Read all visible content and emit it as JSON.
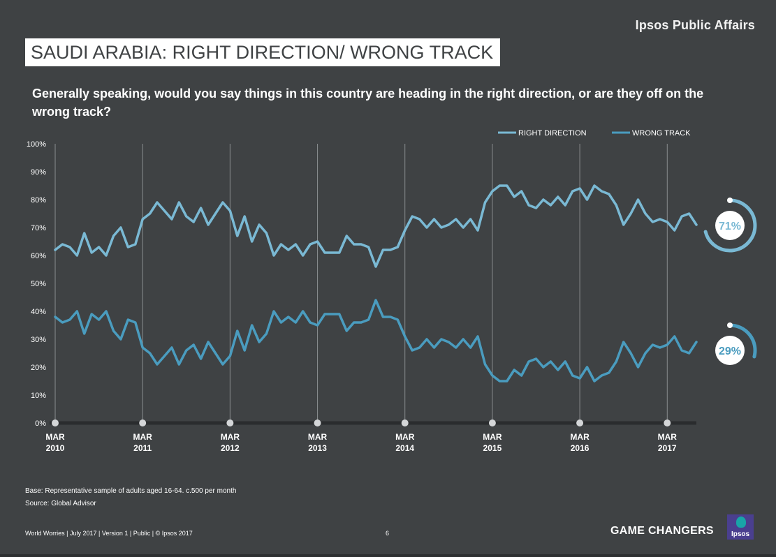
{
  "header": {
    "brand": "Ipsos Public Affairs",
    "title": "SAUDI ARABIA: RIGHT DIRECTION/ WRONG TRACK",
    "question": "Generally speaking, would you say things in this country are heading in the right direction, or are they off on the wrong track?"
  },
  "notes": {
    "base": "Base: Representative sample of adults aged 16-64. c.500 per month",
    "source": "Source: Global Advisor"
  },
  "footer": {
    "text": "World Worries | July 2017 | Version 1 | Public | © Ipsos 2017",
    "page": "6",
    "tagline": "GAME CHANGERS",
    "logo": "Ipsos"
  },
  "colors": {
    "background": "#3f4244",
    "right_direction": "#7ab9d4",
    "wrong_track": "#4a9cbf",
    "grid": "#8a8d8f",
    "baseline": "#2a2c2e"
  },
  "chart_data": {
    "type": "line",
    "title": "SAUDI ARABIA: RIGHT DIRECTION/ WRONG TRACK",
    "xlabel": "",
    "ylabel": "",
    "ylim": [
      0,
      100
    ],
    "y_ticks": [
      "0%",
      "10%",
      "20%",
      "30%",
      "40%",
      "50%",
      "60%",
      "70%",
      "80%",
      "90%",
      "100%"
    ],
    "x_ticks": [
      {
        "month": "MAR",
        "year": "2010"
      },
      {
        "month": "MAR",
        "year": "2011"
      },
      {
        "month": "MAR",
        "year": "2012"
      },
      {
        "month": "MAR",
        "year": "2013"
      },
      {
        "month": "MAR",
        "year": "2014"
      },
      {
        "month": "MAR",
        "year": "2015"
      },
      {
        "month": "MAR",
        "year": "2016"
      },
      {
        "month": "MAR",
        "year": "2017"
      }
    ],
    "legend": [
      "RIGHT DIRECTION",
      "WRONG TRACK"
    ],
    "legend_position": "top-right",
    "series": [
      {
        "name": "RIGHT DIRECTION",
        "final_label": "71%",
        "final_value": 71,
        "values": [
          62,
          64,
          63,
          60,
          68,
          61,
          63,
          60,
          67,
          70,
          63,
          64,
          73,
          75,
          79,
          76,
          73,
          79,
          74,
          72,
          77,
          71,
          75,
          79,
          76,
          67,
          74,
          65,
          71,
          68,
          60,
          64,
          62,
          64,
          60,
          64,
          65,
          61,
          61,
          61,
          67,
          64,
          64,
          63,
          56,
          62,
          62,
          63,
          69,
          74,
          73,
          70,
          73,
          70,
          71,
          73,
          70,
          73,
          69,
          79,
          83,
          85,
          85,
          81,
          83,
          78,
          77,
          80,
          78,
          81,
          78,
          83,
          84,
          80,
          85,
          83,
          82,
          78,
          71,
          75,
          80,
          75,
          72,
          73,
          72,
          69,
          74,
          75,
          71
        ]
      },
      {
        "name": "WRONG TRACK",
        "final_label": "29%",
        "final_value": 29,
        "values": [
          38,
          36,
          37,
          40,
          32,
          39,
          37,
          40,
          33,
          30,
          37,
          36,
          27,
          25,
          21,
          24,
          27,
          21,
          26,
          28,
          23,
          29,
          25,
          21,
          24,
          33,
          26,
          35,
          29,
          32,
          40,
          36,
          38,
          36,
          40,
          36,
          35,
          39,
          39,
          39,
          33,
          36,
          36,
          37,
          44,
          38,
          38,
          37,
          31,
          26,
          27,
          30,
          27,
          30,
          29,
          27,
          30,
          27,
          31,
          21,
          17,
          15,
          15,
          19,
          17,
          22,
          23,
          20,
          22,
          19,
          22,
          17,
          16,
          20,
          15,
          17,
          18,
          22,
          29,
          25,
          20,
          25,
          28,
          27,
          28,
          31,
          26,
          25,
          29
        ]
      }
    ]
  }
}
